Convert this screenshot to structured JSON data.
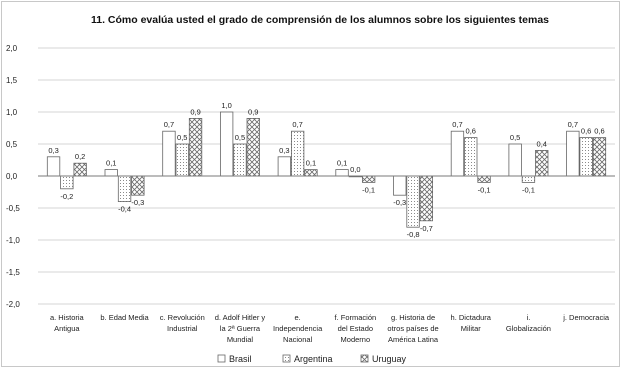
{
  "chart_data": {
    "type": "bar",
    "title": "11. Cómo evalúa usted el grado de comprensión de los alumnos sobre los siguientes temas",
    "xlabel": "",
    "ylabel": "",
    "ylim": [
      -2.0,
      2.0
    ],
    "yticks": [
      "2,0",
      "1,5",
      "1,0",
      "0,5",
      "0,0",
      "-0,5",
      "-1,0",
      "-1,5",
      "-2,0"
    ],
    "grid": true,
    "legend_position": "bottom",
    "categories": [
      [
        "a. Historia",
        "Antigua"
      ],
      [
        "b. Edad Media"
      ],
      [
        "c. Revolución",
        "Industrial"
      ],
      [
        "d. Adolf Hitler y",
        "la 2ª Guerra",
        "Mundial"
      ],
      [
        "e.",
        "Independencia",
        "Nacional"
      ],
      [
        "f. Formación",
        "del Estado",
        "Moderno"
      ],
      [
        "g. Historia de",
        "otros países de",
        "América Latina"
      ],
      [
        "h. Dictadura",
        "Militar"
      ],
      [
        "i.",
        "Globalización"
      ],
      [
        "j. Democracia"
      ]
    ],
    "series": [
      {
        "name": "Brasil",
        "values": [
          0.3,
          0.1,
          0.7,
          1.0,
          0.3,
          0.1,
          -0.3,
          0.7,
          0.5,
          0.7
        ],
        "labels": [
          "0,3",
          "0,1",
          "0,7",
          "1,0",
          "0,3",
          "0,1",
          "-0,3",
          "0,7",
          "0,5",
          "0,7"
        ]
      },
      {
        "name": "Argentina",
        "values": [
          -0.2,
          -0.4,
          0.5,
          0.5,
          0.7,
          0.0,
          -0.8,
          0.6,
          -0.1,
          0.6
        ],
        "labels": [
          "-0,2",
          "-0,4",
          "0,5",
          "0,5",
          "0,7",
          "0,0",
          "-0,8",
          "0,6",
          "-0,1",
          "0,6"
        ]
      },
      {
        "name": "Uruguay",
        "values": [
          0.2,
          -0.3,
          0.9,
          0.9,
          0.1,
          -0.1,
          -0.7,
          -0.1,
          0.4,
          0.6
        ],
        "labels": [
          "0,2",
          "-0,3",
          "0,9",
          "0,9",
          "0,1",
          "-0,1",
          "-0,7",
          "-0,1",
          "0,4",
          "0,6"
        ]
      }
    ],
    "colors": {
      "bar_fill": "#ffffff",
      "bar_stroke": "#666666",
      "grid": "#d4d4d4",
      "text": "#222222"
    }
  }
}
